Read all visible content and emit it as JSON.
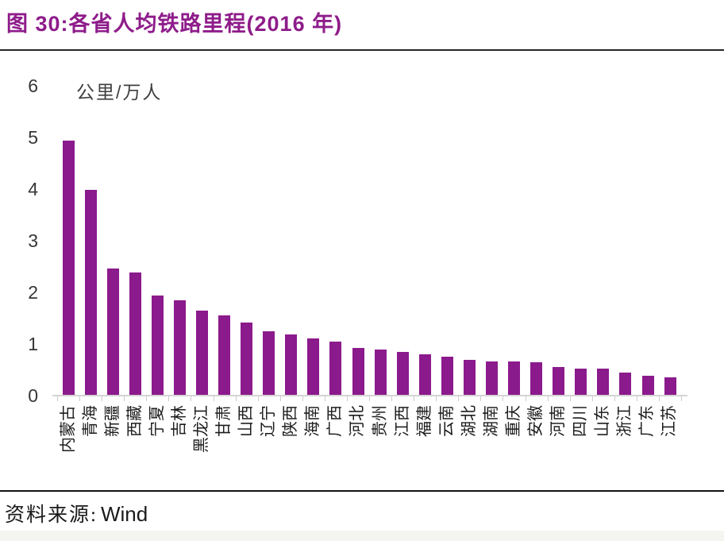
{
  "header": {
    "title": "图 30:各省人均铁路里程(2016 年)"
  },
  "chart": {
    "unit_label": "公里/万人"
  },
  "chart_data": {
    "type": "bar",
    "title": "各省人均铁路里程(2016 年)",
    "ylabel": "公里/万人",
    "xlabel": "",
    "ylim": [
      0,
      6
    ],
    "yticks": [
      6,
      5,
      4,
      3,
      2,
      1,
      0
    ],
    "grid": false,
    "legend_position": "none",
    "bar_color": "#8b1a8c",
    "categories": [
      "内蒙古",
      "青海",
      "新疆",
      "西藏",
      "宁夏",
      "吉林",
      "黑龙江",
      "甘肃",
      "山西",
      "辽宁",
      "陕西",
      "海南",
      "广西",
      "河北",
      "贵州",
      "江西",
      "福建",
      "云南",
      "湖北",
      "湖南",
      "重庆",
      "安徽",
      "河南",
      "四川",
      "山东",
      "浙江",
      "广东",
      "江苏"
    ],
    "values": [
      4.94,
      3.98,
      2.46,
      2.38,
      1.94,
      1.84,
      1.64,
      1.56,
      1.42,
      1.25,
      1.19,
      1.11,
      1.05,
      0.92,
      0.9,
      0.85,
      0.8,
      0.75,
      0.69,
      0.66,
      0.66,
      0.65,
      0.56,
      0.53,
      0.52,
      0.45,
      0.38,
      0.35
    ]
  },
  "footer": {
    "source_label": "资料来源:",
    "source_value": "Wind"
  }
}
